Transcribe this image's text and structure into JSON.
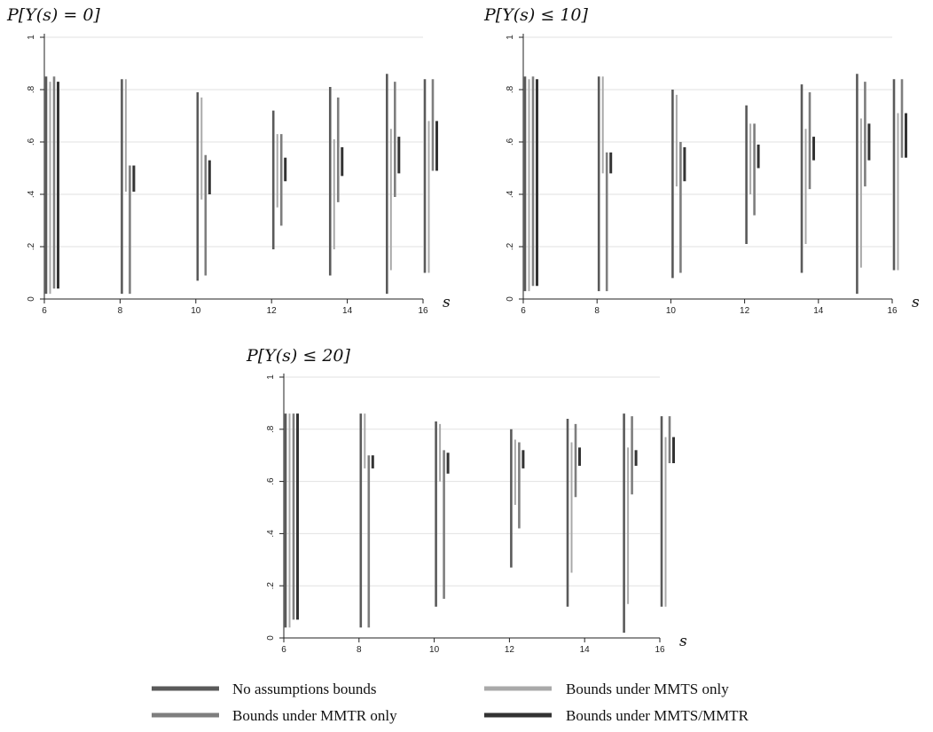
{
  "legend": {
    "items": [
      {
        "label": "No assumptions bounds",
        "color": "#5a5a5a"
      },
      {
        "label": "Bounds under MMTS only",
        "color": "#a9a9a9"
      },
      {
        "label": "Bounds under MMTR only",
        "color": "#7e7e7e"
      },
      {
        "label": "Bounds under MMTS/MMTR",
        "color": "#333333"
      }
    ]
  },
  "chart_data": [
    {
      "type": "range-bar",
      "title": "P[Y(s) = 0]",
      "xlabel": "s",
      "x_ticks": [
        "6",
        "8",
        "10",
        "12",
        "14",
        "16"
      ],
      "y_ticks": [
        "0",
        ".2",
        ".4",
        ".6",
        ".8",
        "1"
      ],
      "ylim": [
        0,
        1
      ],
      "grid": true,
      "groups": [
        {
          "s": 6,
          "bounds": [
            [
              0.02,
              0.85
            ],
            [
              0.02,
              0.83
            ],
            [
              0.04,
              0.85
            ],
            [
              0.04,
              0.83
            ]
          ]
        },
        {
          "s": 8,
          "bounds": [
            [
              0.02,
              0.84
            ],
            [
              0.41,
              0.84
            ],
            [
              0.02,
              0.51
            ],
            [
              0.41,
              0.51
            ]
          ]
        },
        {
          "s": 10,
          "bounds": [
            [
              0.07,
              0.79
            ],
            [
              0.38,
              0.77
            ],
            [
              0.09,
              0.55
            ],
            [
              0.4,
              0.53
            ]
          ]
        },
        {
          "s": 12,
          "bounds": [
            [
              0.19,
              0.72
            ],
            [
              0.35,
              0.63
            ],
            [
              0.28,
              0.63
            ],
            [
              0.45,
              0.54
            ]
          ]
        },
        {
          "s": 13.5,
          "bounds": [
            [
              0.09,
              0.81
            ],
            [
              0.19,
              0.61
            ],
            [
              0.37,
              0.77
            ],
            [
              0.47,
              0.58
            ]
          ]
        },
        {
          "s": 15,
          "bounds": [
            [
              0.02,
              0.86
            ],
            [
              0.11,
              0.65
            ],
            [
              0.39,
              0.83
            ],
            [
              0.48,
              0.62
            ]
          ]
        },
        {
          "s": 16,
          "bounds": [
            [
              0.1,
              0.84
            ],
            [
              0.1,
              0.68
            ],
            [
              0.49,
              0.84
            ],
            [
              0.49,
              0.68
            ]
          ]
        }
      ]
    },
    {
      "type": "range-bar",
      "title": "P[Y(s) ≤ 10]",
      "xlabel": "s",
      "x_ticks": [
        "6",
        "8",
        "10",
        "12",
        "14",
        "16"
      ],
      "y_ticks": [
        "0",
        ".2",
        ".4",
        ".6",
        ".8",
        "1"
      ],
      "ylim": [
        0,
        1
      ],
      "grid": true,
      "groups": [
        {
          "s": 6,
          "bounds": [
            [
              0.03,
              0.85
            ],
            [
              0.03,
              0.84
            ],
            [
              0.05,
              0.85
            ],
            [
              0.05,
              0.84
            ]
          ]
        },
        {
          "s": 8,
          "bounds": [
            [
              0.03,
              0.85
            ],
            [
              0.48,
              0.85
            ],
            [
              0.03,
              0.56
            ],
            [
              0.48,
              0.56
            ]
          ]
        },
        {
          "s": 10,
          "bounds": [
            [
              0.08,
              0.8
            ],
            [
              0.43,
              0.78
            ],
            [
              0.1,
              0.6
            ],
            [
              0.45,
              0.58
            ]
          ]
        },
        {
          "s": 12,
          "bounds": [
            [
              0.21,
              0.74
            ],
            [
              0.4,
              0.67
            ],
            [
              0.32,
              0.67
            ],
            [
              0.5,
              0.59
            ]
          ]
        },
        {
          "s": 13.5,
          "bounds": [
            [
              0.1,
              0.82
            ],
            [
              0.21,
              0.65
            ],
            [
              0.42,
              0.79
            ],
            [
              0.53,
              0.62
            ]
          ]
        },
        {
          "s": 15,
          "bounds": [
            [
              0.02,
              0.86
            ],
            [
              0.12,
              0.69
            ],
            [
              0.43,
              0.83
            ],
            [
              0.53,
              0.67
            ]
          ]
        },
        {
          "s": 16,
          "bounds": [
            [
              0.11,
              0.84
            ],
            [
              0.11,
              0.71
            ],
            [
              0.54,
              0.84
            ],
            [
              0.54,
              0.71
            ]
          ]
        }
      ]
    },
    {
      "type": "range-bar",
      "title": "P[Y(s) ≤ 20]",
      "xlabel": "s",
      "x_ticks": [
        "6",
        "8",
        "10",
        "12",
        "14",
        "16"
      ],
      "y_ticks": [
        "0",
        ".2",
        ".4",
        ".6",
        ".8",
        "1"
      ],
      "ylim": [
        0,
        1
      ],
      "grid": true,
      "groups": [
        {
          "s": 6,
          "bounds": [
            [
              0.04,
              0.86
            ],
            [
              0.04,
              0.86
            ],
            [
              0.07,
              0.86
            ],
            [
              0.07,
              0.86
            ]
          ]
        },
        {
          "s": 8,
          "bounds": [
            [
              0.04,
              0.86
            ],
            [
              0.65,
              0.86
            ],
            [
              0.04,
              0.7
            ],
            [
              0.65,
              0.7
            ]
          ]
        },
        {
          "s": 10,
          "bounds": [
            [
              0.12,
              0.83
            ],
            [
              0.6,
              0.82
            ],
            [
              0.15,
              0.72
            ],
            [
              0.63,
              0.71
            ]
          ]
        },
        {
          "s": 12,
          "bounds": [
            [
              0.27,
              0.8
            ],
            [
              0.51,
              0.76
            ],
            [
              0.42,
              0.75
            ],
            [
              0.65,
              0.72
            ]
          ]
        },
        {
          "s": 13.5,
          "bounds": [
            [
              0.12,
              0.84
            ],
            [
              0.25,
              0.75
            ],
            [
              0.54,
              0.82
            ],
            [
              0.66,
              0.73
            ]
          ]
        },
        {
          "s": 15,
          "bounds": [
            [
              0.02,
              0.86
            ],
            [
              0.13,
              0.73
            ],
            [
              0.55,
              0.85
            ],
            [
              0.66,
              0.72
            ]
          ]
        },
        {
          "s": 16,
          "bounds": [
            [
              0.12,
              0.85
            ],
            [
              0.12,
              0.77
            ],
            [
              0.67,
              0.85
            ],
            [
              0.67,
              0.77
            ]
          ]
        }
      ]
    }
  ]
}
